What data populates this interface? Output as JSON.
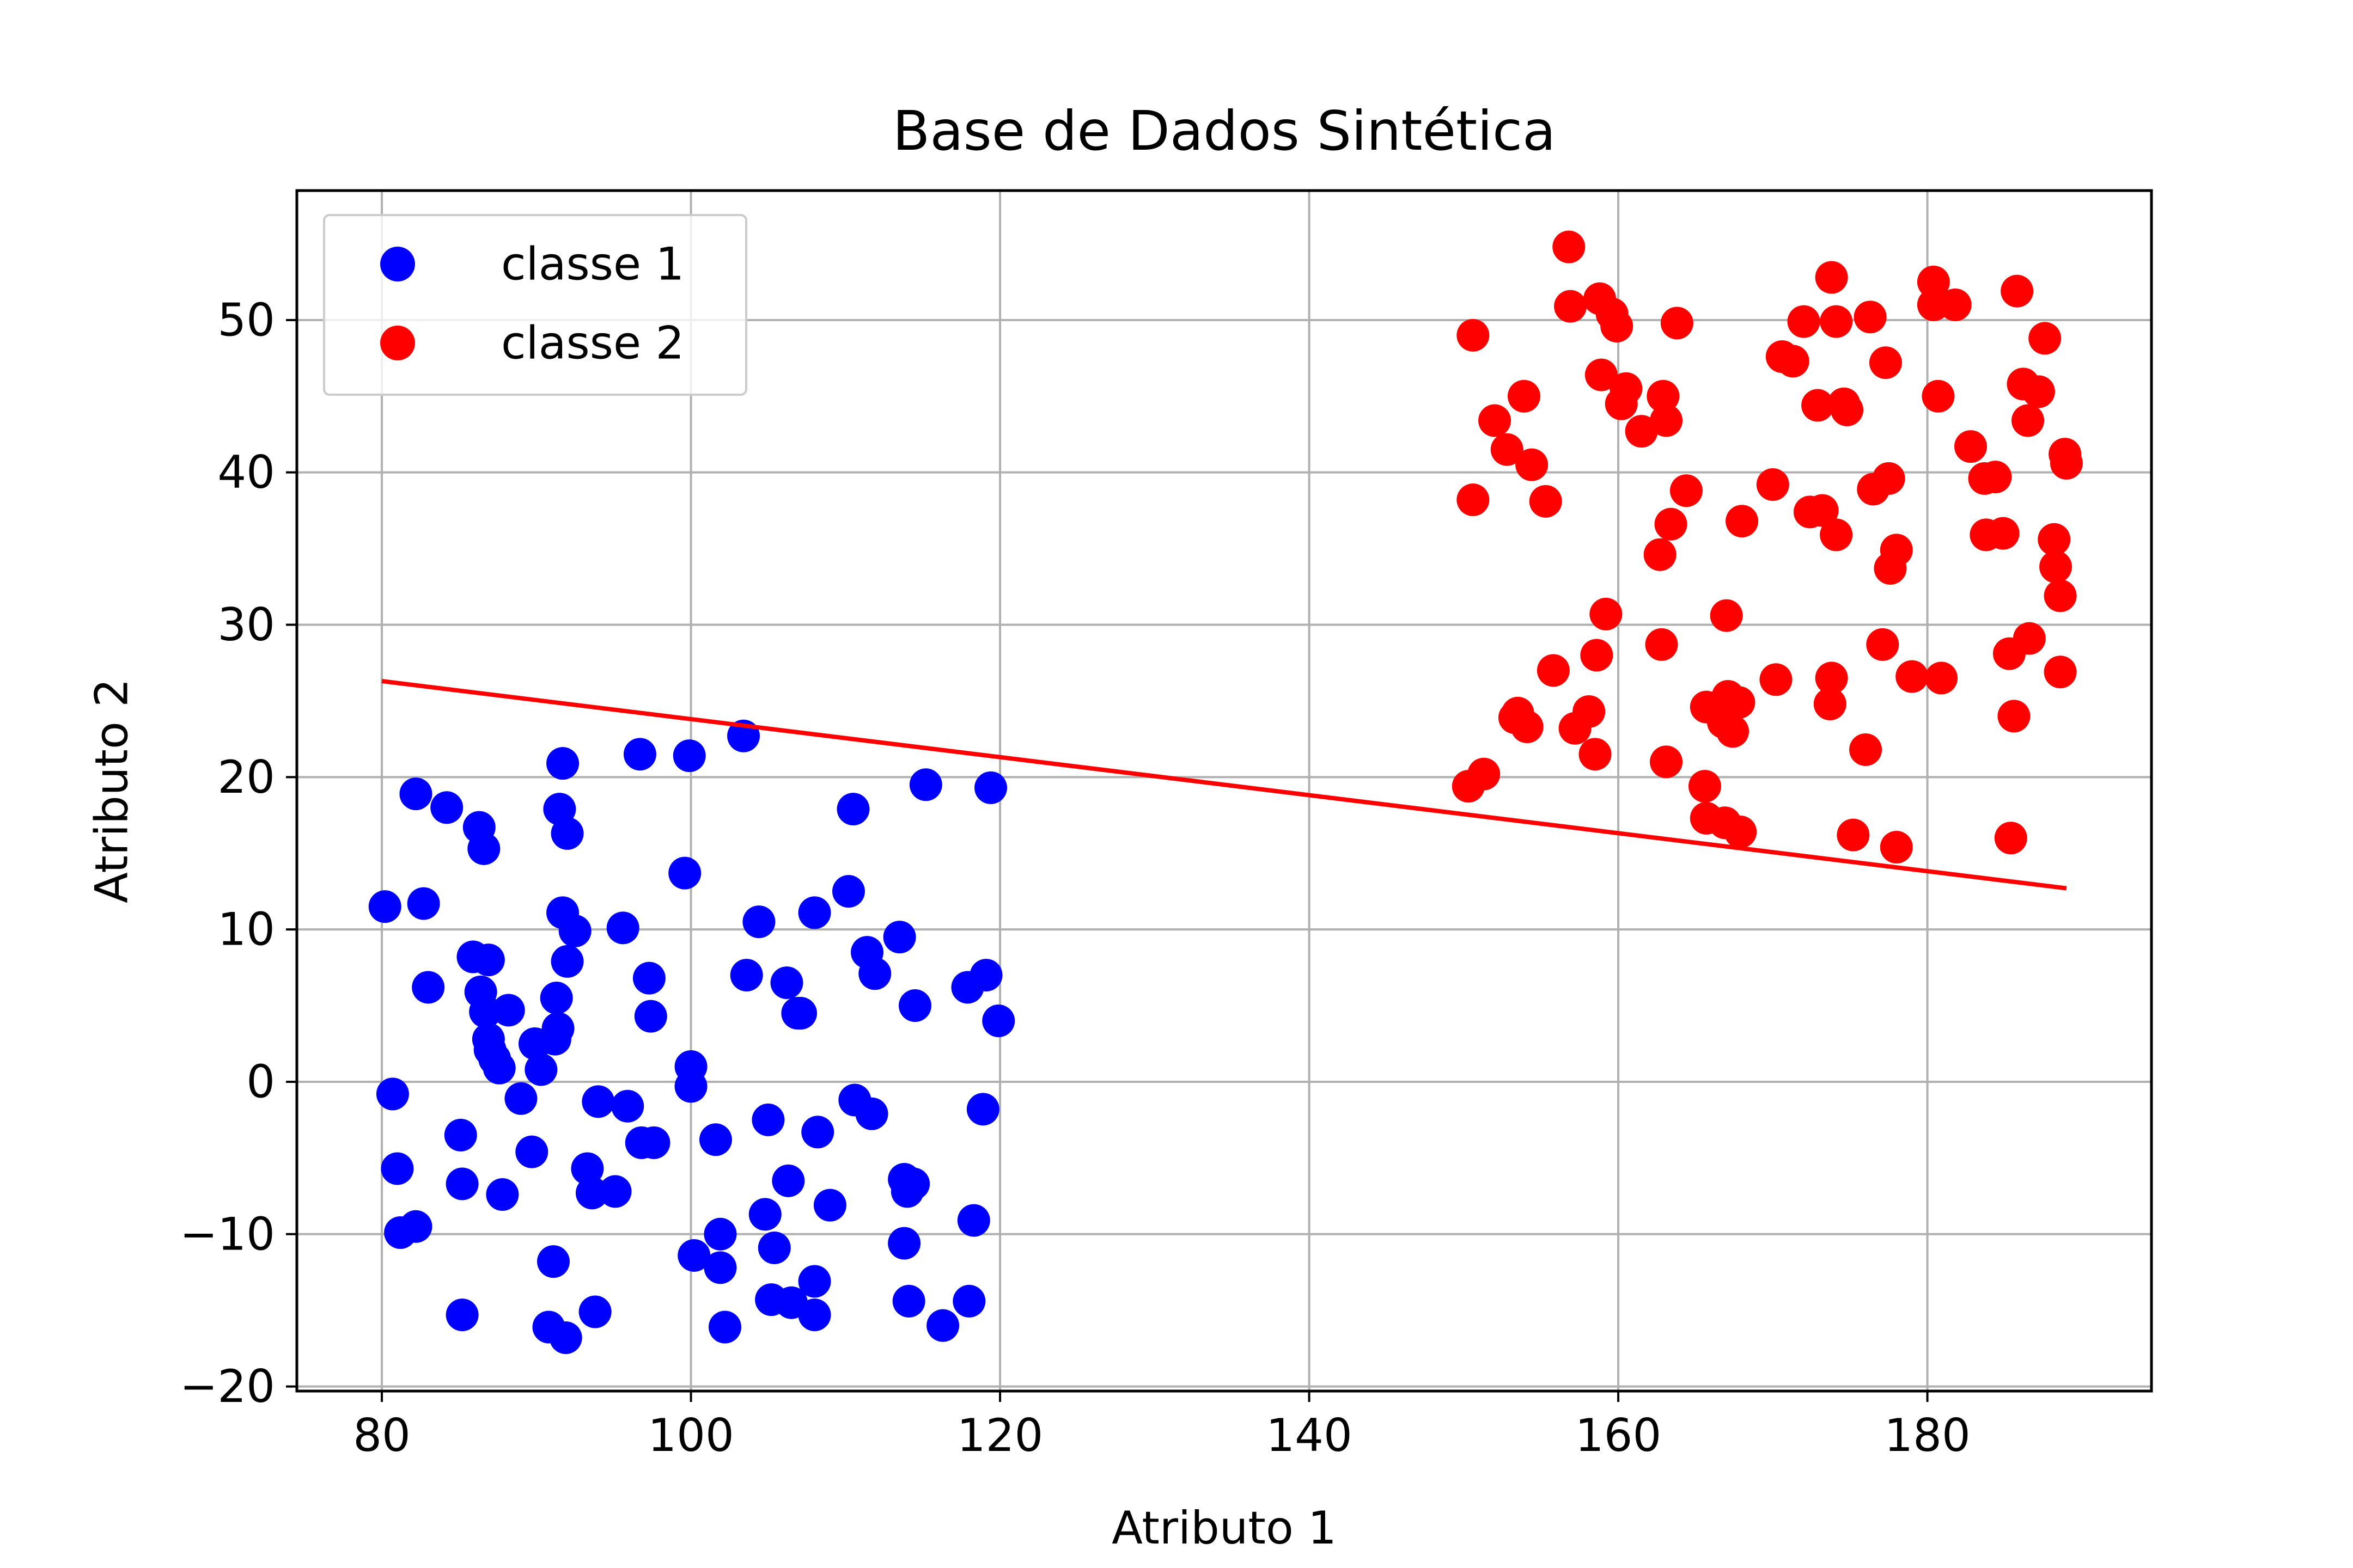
{
  "chart_data": {
    "type": "scatter",
    "title": "Base de Dados Sintética",
    "xlabel": "Atributo 1",
    "ylabel": "Atributo 2",
    "xlim": [
      74.5,
      194.5
    ],
    "ylim": [
      -20.3,
      58.5
    ],
    "xticks": [
      80,
      100,
      120,
      140,
      160,
      180
    ],
    "yticks": [
      -20,
      -10,
      0,
      10,
      20,
      30,
      40,
      50
    ],
    "xtick_labels": [
      "80",
      "100",
      "120",
      "140",
      "160",
      "180"
    ],
    "ytick_labels": [
      "−20",
      "−10",
      "0",
      "10",
      "20",
      "30",
      "40",
      "50"
    ],
    "grid": true,
    "legend_position": "upper-left",
    "series": [
      {
        "name": "classe 1",
        "color": "#0000ff",
        "marker": "circle",
        "points": [
          [
            80.2,
            11.5
          ],
          [
            80.7,
            -0.8
          ],
          [
            81.0,
            -5.7
          ],
          [
            81.2,
            -9.9
          ],
          [
            82.2,
            -9.5
          ],
          [
            82.2,
            18.9
          ],
          [
            82.7,
            11.7
          ],
          [
            83.0,
            6.2
          ],
          [
            84.2,
            18.0
          ],
          [
            85.1,
            -3.5
          ],
          [
            85.2,
            -6.7
          ],
          [
            85.2,
            -15.3
          ],
          [
            85.9,
            8.2
          ],
          [
            86.3,
            16.7
          ],
          [
            86.4,
            5.9
          ],
          [
            86.6,
            15.3
          ],
          [
            86.7,
            4.6
          ],
          [
            86.9,
            2.8
          ],
          [
            86.9,
            8.0
          ],
          [
            87.0,
            2.1
          ],
          [
            87.3,
            1.5
          ],
          [
            87.6,
            0.9
          ],
          [
            87.8,
            -7.4
          ],
          [
            88.2,
            4.7
          ],
          [
            89.0,
            -1.1
          ],
          [
            89.7,
            -4.6
          ],
          [
            89.9,
            2.5
          ],
          [
            90.3,
            0.8
          ],
          [
            90.8,
            -16.1
          ],
          [
            91.1,
            -11.8
          ],
          [
            91.2,
            2.8
          ],
          [
            91.3,
            5.5
          ],
          [
            91.4,
            3.5
          ],
          [
            91.5,
            17.9
          ],
          [
            91.7,
            20.9
          ],
          [
            91.7,
            11.1
          ],
          [
            91.9,
            -16.8
          ],
          [
            92.0,
            16.3
          ],
          [
            92.0,
            7.9
          ],
          [
            92.5,
            9.9
          ],
          [
            93.3,
            -5.7
          ],
          [
            93.6,
            -7.3
          ],
          [
            93.8,
            -15.1
          ],
          [
            94.0,
            -1.3
          ],
          [
            95.1,
            -7.2
          ],
          [
            95.6,
            10.1
          ],
          [
            95.9,
            -1.6
          ],
          [
            96.7,
            21.5
          ],
          [
            96.8,
            -4.0
          ],
          [
            97.3,
            6.8
          ],
          [
            97.4,
            4.3
          ],
          [
            97.6,
            -4.0
          ],
          [
            99.6,
            13.7
          ],
          [
            99.9,
            21.4
          ],
          [
            100.0,
            1.0
          ],
          [
            100.0,
            -0.3
          ],
          [
            100.2,
            -11.4
          ],
          [
            101.6,
            -3.8
          ],
          [
            101.9,
            -12.2
          ],
          [
            101.9,
            -10.0
          ],
          [
            102.2,
            -16.1
          ],
          [
            103.4,
            22.7
          ],
          [
            103.6,
            7.0
          ],
          [
            104.4,
            10.5
          ],
          [
            104.8,
            -8.7
          ],
          [
            105.0,
            -2.5
          ],
          [
            105.2,
            -14.3
          ],
          [
            105.4,
            -10.9
          ],
          [
            106.2,
            6.5
          ],
          [
            106.3,
            -6.5
          ],
          [
            106.5,
            -14.5
          ],
          [
            106.9,
            4.5
          ],
          [
            107.1,
            4.5
          ],
          [
            108.0,
            -15.3
          ],
          [
            108.0,
            11.1
          ],
          [
            108.0,
            -13.1
          ],
          [
            108.2,
            -3.3
          ],
          [
            109.0,
            -8.1
          ],
          [
            110.2,
            12.5
          ],
          [
            110.5,
            17.9
          ],
          [
            110.6,
            -1.2
          ],
          [
            111.4,
            8.5
          ],
          [
            111.7,
            -2.1
          ],
          [
            111.9,
            7.1
          ],
          [
            113.5,
            9.5
          ],
          [
            113.8,
            -6.4
          ],
          [
            113.8,
            -10.6
          ],
          [
            114.0,
            -7.2
          ],
          [
            114.1,
            -14.4
          ],
          [
            114.4,
            -6.7
          ],
          [
            114.5,
            5.0
          ],
          [
            115.2,
            19.5
          ],
          [
            116.3,
            -16.0
          ],
          [
            117.9,
            6.2
          ],
          [
            118.0,
            -14.4
          ],
          [
            118.3,
            -9.1
          ],
          [
            118.9,
            -1.8
          ],
          [
            119.1,
            7.0
          ],
          [
            119.4,
            19.3
          ],
          [
            119.9,
            4.0
          ]
        ]
      },
      {
        "name": "classe 2",
        "color": "#ff0000",
        "marker": "circle",
        "points": [
          [
            150.3,
            19.4
          ],
          [
            150.6,
            38.2
          ],
          [
            150.6,
            49.0
          ],
          [
            151.3,
            20.2
          ],
          [
            152.0,
            43.4
          ],
          [
            152.8,
            41.5
          ],
          [
            153.3,
            23.9
          ],
          [
            153.5,
            24.2
          ],
          [
            153.9,
            45.0
          ],
          [
            154.1,
            23.3
          ],
          [
            154.4,
            40.5
          ],
          [
            155.3,
            38.1
          ],
          [
            155.8,
            27.0
          ],
          [
            156.8,
            54.8
          ],
          [
            156.9,
            50.9
          ],
          [
            157.2,
            23.2
          ],
          [
            158.1,
            24.3
          ],
          [
            158.5,
            21.5
          ],
          [
            158.6,
            28.0
          ],
          [
            158.8,
            51.4
          ],
          [
            158.9,
            46.4
          ],
          [
            159.2,
            30.7
          ],
          [
            159.6,
            50.4
          ],
          [
            159.9,
            49.6
          ],
          [
            160.2,
            44.5
          ],
          [
            160.5,
            45.5
          ],
          [
            161.5,
            42.7
          ],
          [
            162.7,
            34.6
          ],
          [
            162.8,
            28.7
          ],
          [
            162.9,
            45.0
          ],
          [
            163.1,
            43.4
          ],
          [
            163.1,
            21.0
          ],
          [
            163.4,
            36.6
          ],
          [
            163.8,
            49.8
          ],
          [
            164.4,
            38.8
          ],
          [
            165.6,
            19.4
          ],
          [
            165.7,
            24.6
          ],
          [
            165.7,
            17.3
          ],
          [
            166.8,
            23.6
          ],
          [
            166.9,
            17.0
          ],
          [
            167.0,
            30.6
          ],
          [
            167.1,
            25.3
          ],
          [
            167.4,
            23.0
          ],
          [
            167.8,
            24.9
          ],
          [
            167.9,
            16.4
          ],
          [
            168.0,
            36.8
          ],
          [
            170.0,
            39.2
          ],
          [
            170.2,
            26.4
          ],
          [
            170.6,
            47.6
          ],
          [
            171.3,
            47.3
          ],
          [
            172.0,
            49.9
          ],
          [
            172.4,
            37.4
          ],
          [
            172.9,
            44.4
          ],
          [
            173.2,
            37.5
          ],
          [
            173.7,
            24.8
          ],
          [
            173.8,
            26.5
          ],
          [
            173.8,
            52.8
          ],
          [
            174.1,
            35.9
          ],
          [
            174.1,
            49.9
          ],
          [
            174.6,
            44.5
          ],
          [
            174.8,
            44.1
          ],
          [
            175.2,
            16.2
          ],
          [
            176.0,
            21.8
          ],
          [
            176.3,
            50.2
          ],
          [
            176.5,
            38.9
          ],
          [
            177.1,
            28.7
          ],
          [
            177.3,
            47.2
          ],
          [
            177.5,
            39.6
          ],
          [
            177.6,
            33.7
          ],
          [
            178.0,
            34.9
          ],
          [
            178.0,
            15.4
          ],
          [
            179.0,
            26.6
          ],
          [
            180.4,
            51.0
          ],
          [
            180.4,
            52.5
          ],
          [
            180.7,
            45.0
          ],
          [
            180.9,
            26.5
          ],
          [
            181.8,
            51.0
          ],
          [
            182.8,
            41.7
          ],
          [
            183.7,
            39.6
          ],
          [
            183.8,
            35.9
          ],
          [
            184.4,
            39.7
          ],
          [
            184.9,
            36.0
          ],
          [
            185.3,
            28.1
          ],
          [
            185.4,
            16.0
          ],
          [
            185.6,
            24.0
          ],
          [
            185.8,
            51.9
          ],
          [
            186.2,
            45.8
          ],
          [
            186.5,
            43.4
          ],
          [
            186.6,
            29.1
          ],
          [
            187.2,
            45.3
          ],
          [
            187.6,
            48.8
          ],
          [
            188.2,
            35.6
          ],
          [
            188.3,
            33.8
          ],
          [
            188.6,
            31.9
          ],
          [
            188.6,
            26.9
          ],
          [
            188.9,
            41.2
          ],
          [
            189.0,
            40.6
          ]
        ]
      },
      {
        "name": "decision-boundary",
        "color": "#ff0000",
        "marker": "line",
        "points": [
          [
            80.0,
            26.3
          ],
          [
            189.0,
            12.7
          ]
        ]
      }
    ]
  }
}
